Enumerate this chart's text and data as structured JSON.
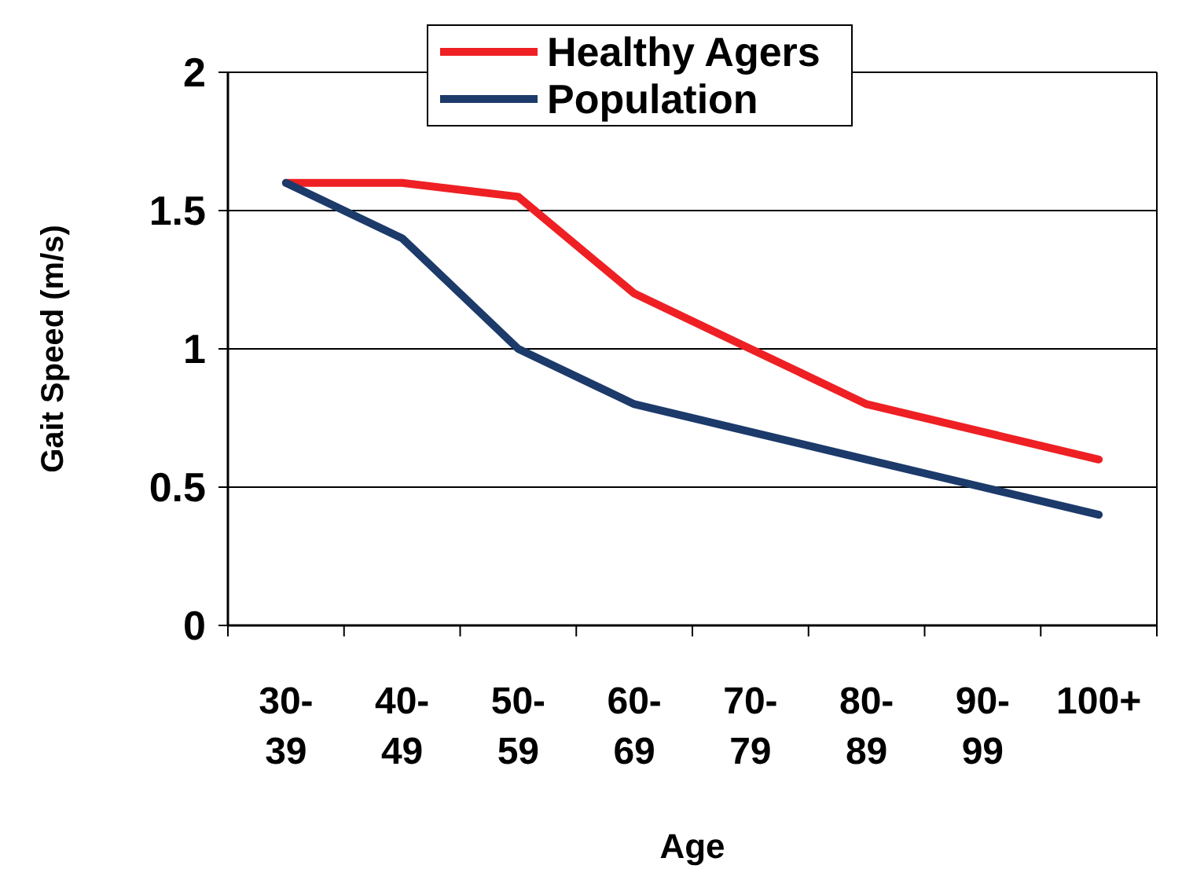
{
  "chart_data": {
    "type": "line",
    "xlabel": "Age",
    "ylabel": "Gait Speed (m/s)",
    "categories": [
      "30-\n39",
      "40-\n49",
      "50-\n59",
      "60-\n69",
      "70-\n79",
      "80-\n89",
      "90-\n99",
      "100+"
    ],
    "series": [
      {
        "name": "Healthy Agers",
        "color": "#ee2024",
        "values": [
          1.6,
          1.6,
          1.55,
          1.2,
          1.0,
          0.8,
          0.7,
          0.6
        ]
      },
      {
        "name": "Population",
        "color": "#1c3a6a",
        "values": [
          1.6,
          1.4,
          1.0,
          0.8,
          0.7,
          0.6,
          0.5,
          0.4
        ]
      }
    ],
    "ylim": [
      0,
      2
    ],
    "yticks": [
      0,
      {
        "value": 0.5,
        "label": "0.5"
      },
      1,
      {
        "value": 1.5,
        "label": "1.5"
      },
      2
    ],
    "grid": "y",
    "legend": "top",
    "marker": "none",
    "line_style": "solid"
  }
}
